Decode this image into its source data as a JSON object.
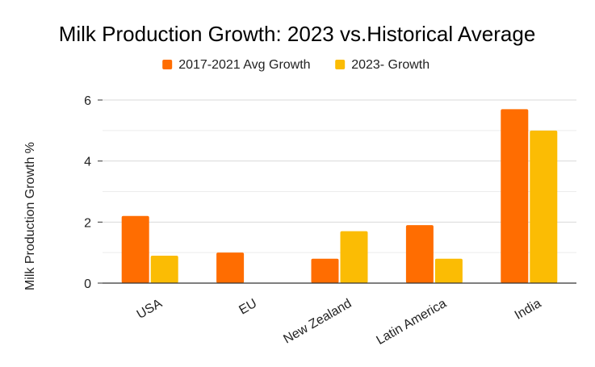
{
  "chart_data": {
    "type": "bar",
    "title": "Milk Production Growth: 2023 vs.Historical Average",
    "xlabel": "",
    "ylabel": "Milk Production Growth %",
    "categories": [
      "USA",
      "EU",
      "New Zealand",
      "Latin America",
      "India"
    ],
    "series": [
      {
        "name": "2017-2021 Avg Growth",
        "color": "#ff6d01",
        "values": [
          2.2,
          1.0,
          0.8,
          1.9,
          5.7
        ]
      },
      {
        "name": "2023- Growth",
        "color": "#fbbc04",
        "values": [
          0.9,
          0,
          1.7,
          0.8,
          5.0
        ]
      }
    ],
    "ylim": [
      0,
      6
    ],
    "yticks": [
      0,
      2,
      4,
      6
    ],
    "ytick_labels": [
      "0",
      "2",
      "4",
      "6"
    ],
    "grid": true,
    "legend_position": "top-center"
  }
}
